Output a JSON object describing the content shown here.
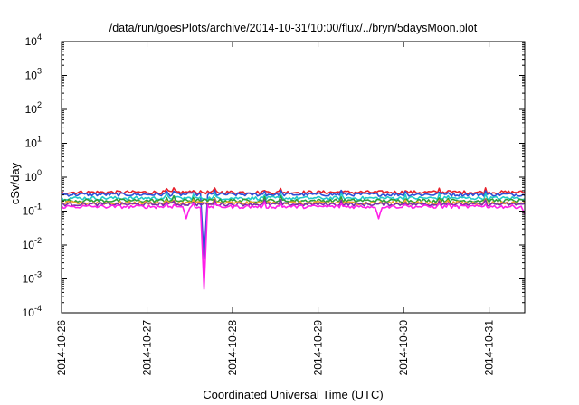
{
  "chart_data": {
    "type": "line",
    "title": "/data/run/goesPlots/archive/2014-10-31/10:00/flux/../bryn/5daysMoon.plot",
    "xlabel": "Coordinated Universal Time (UTC)",
    "ylabel": "cSv/day",
    "yscale": "log",
    "ylim": [
      0.0001,
      10000
    ],
    "xlim": [
      "2014-10-26T00:00",
      "2014-10-31T10:00"
    ],
    "y_ticks": [
      {
        "base": "10",
        "exp": "-4"
      },
      {
        "base": "10",
        "exp": "-3"
      },
      {
        "base": "10",
        "exp": "-2"
      },
      {
        "base": "10",
        "exp": "-1"
      },
      {
        "base": "10",
        "exp": "0"
      },
      {
        "base": "10",
        "exp": "1"
      },
      {
        "base": "10",
        "exp": "2"
      },
      {
        "base": "10",
        "exp": "3"
      },
      {
        "base": "10",
        "exp": "4"
      }
    ],
    "x_ticks": [
      "2014-10-26",
      "2014-10-27",
      "2014-10-28",
      "2014-10-29",
      "2014-10-30",
      "2014-10-31"
    ],
    "grid": false,
    "legend": "none",
    "series": [
      {
        "color": "#e8202a",
        "baseline": 0.37,
        "dips": []
      },
      {
        "color": "#2e4fd6",
        "baseline": 0.32,
        "dips": [
          {
            "x": "2014-10-27T16:00",
            "y": 0.004
          }
        ]
      },
      {
        "color": "#21c9c9",
        "baseline": 0.25,
        "dips": []
      },
      {
        "color": "#2e9e3a",
        "baseline": 0.21,
        "dips": []
      },
      {
        "color": "#f0a52a",
        "baseline": 0.18,
        "dips": []
      },
      {
        "color": "#7a2fa8",
        "baseline": 0.165,
        "dips": []
      },
      {
        "color": "#ff1ee8",
        "baseline": 0.14,
        "dips": [
          {
            "x": "2014-10-27T16:00",
            "y": 0.0005
          },
          {
            "x": "2014-10-27T11:00",
            "y": 0.06
          },
          {
            "x": "2014-10-29T17:00",
            "y": 0.06
          },
          {
            "x": "2014-10-31T10:00",
            "y": 0.08
          }
        ]
      }
    ]
  }
}
